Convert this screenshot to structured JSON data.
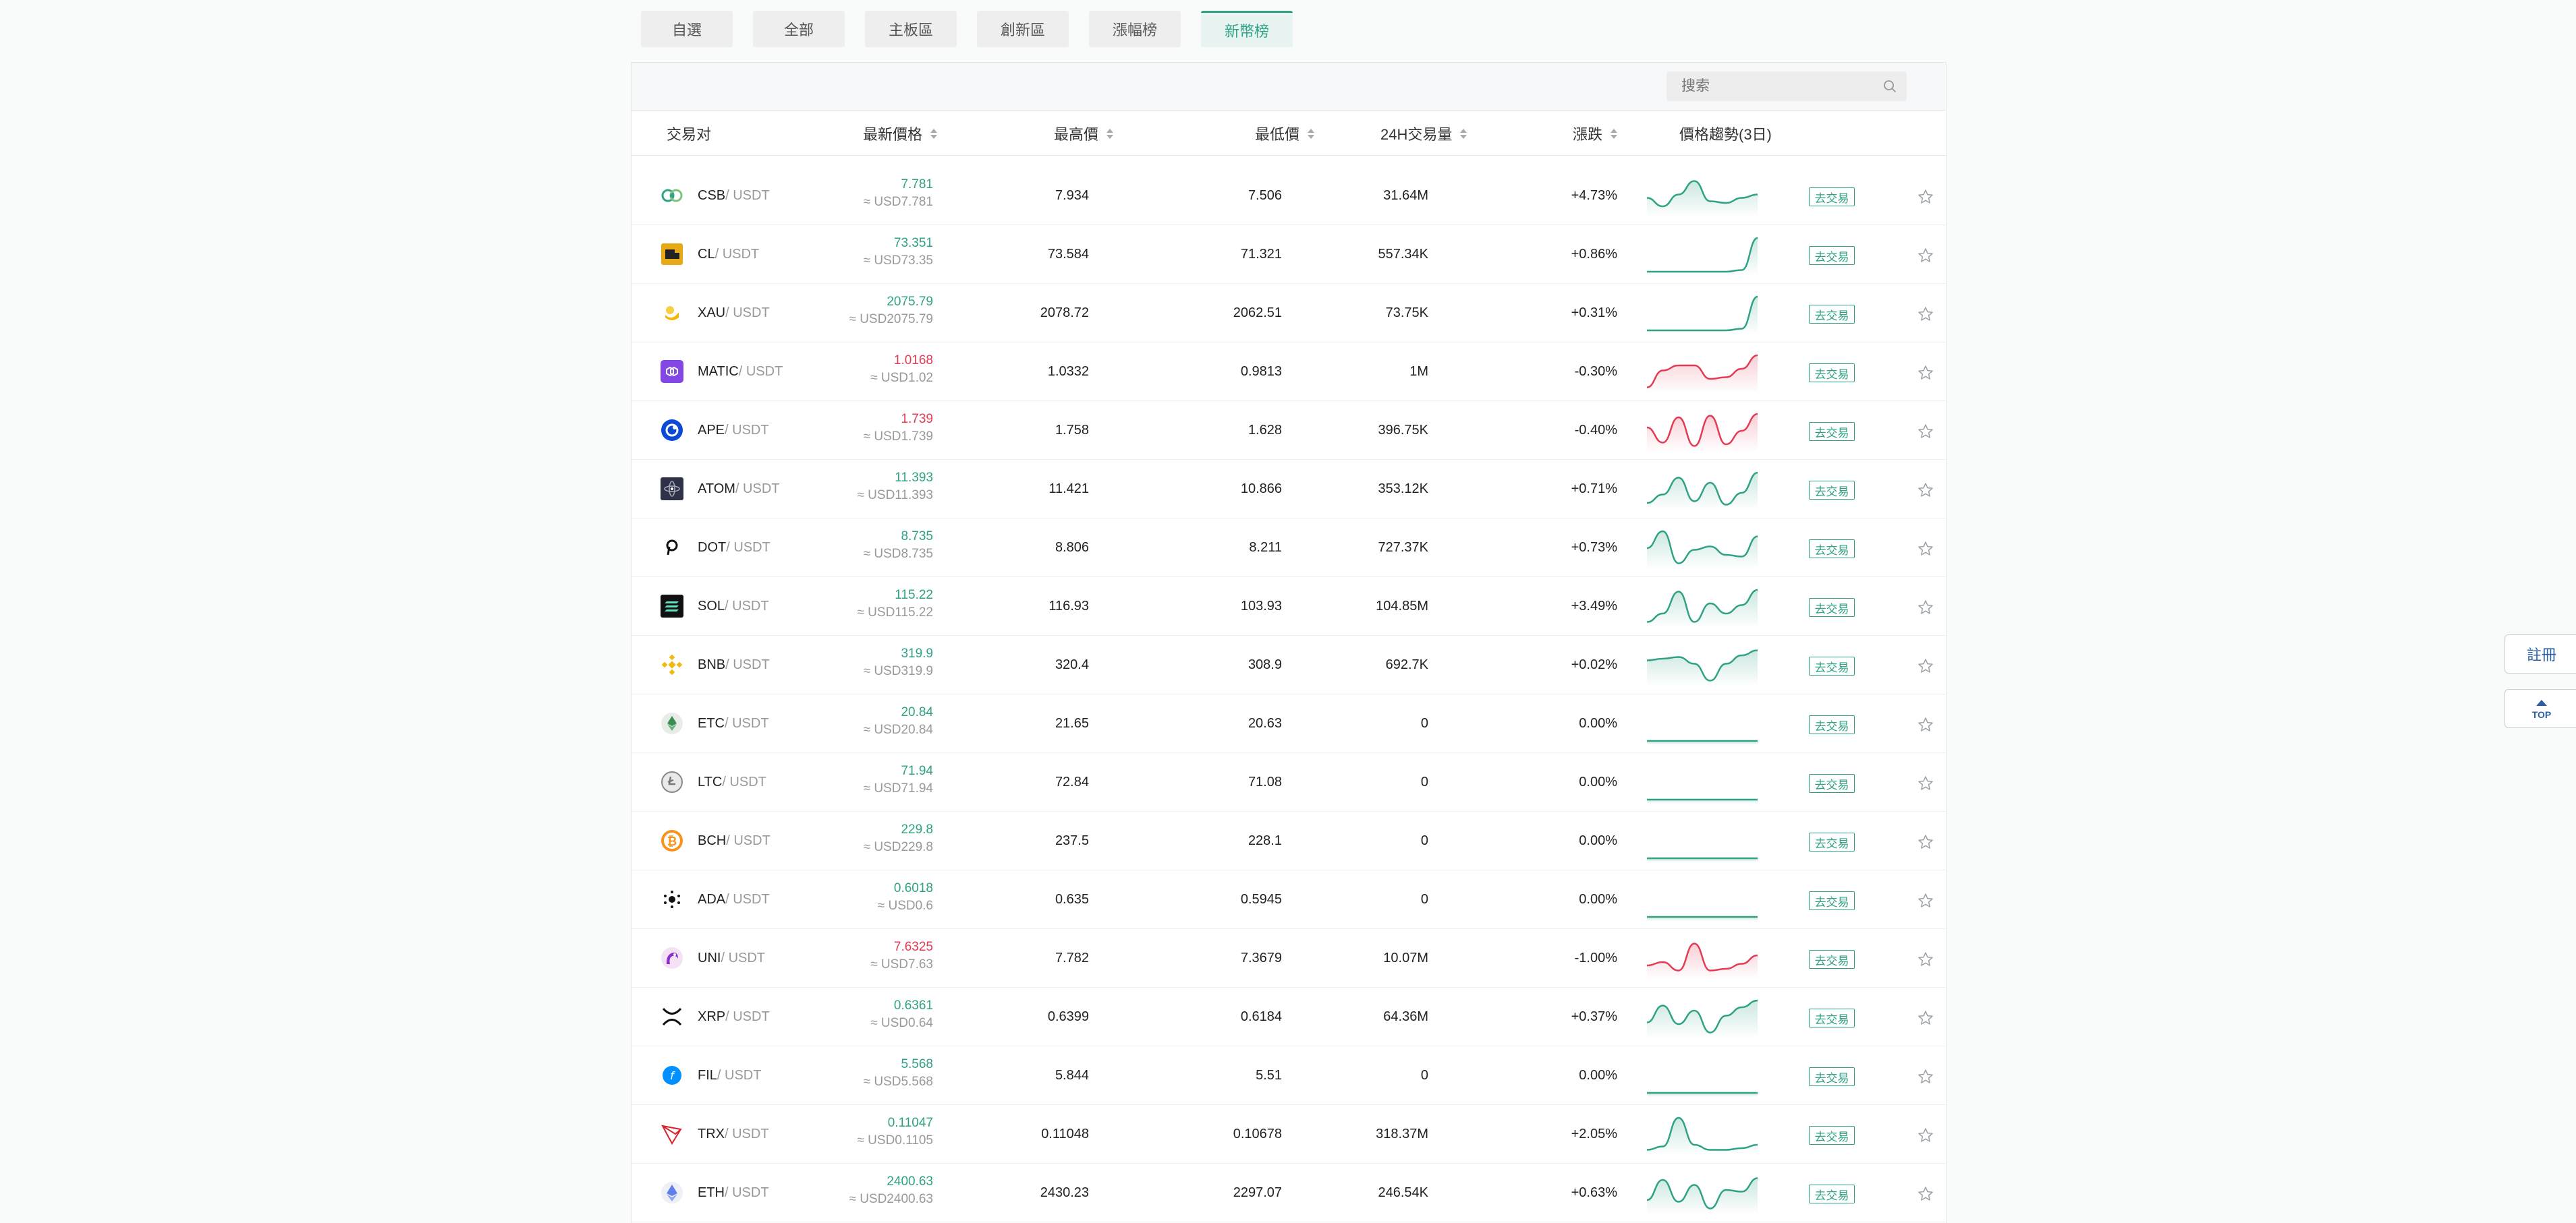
{
  "tabs": [
    {
      "label": "自選",
      "active": false
    },
    {
      "label": "全部",
      "active": false
    },
    {
      "label": "主板區",
      "active": false
    },
    {
      "label": "創新區",
      "active": false
    },
    {
      "label": "漲幅榜",
      "active": false
    },
    {
      "label": "新幣榜",
      "active": true
    }
  ],
  "search": {
    "placeholder": "搜索",
    "icon": "search-icon"
  },
  "table": {
    "headers": {
      "pair": "交易对",
      "last_price": "最新價格",
      "high": "最高價",
      "low": "最低價",
      "volume": "24H交易量",
      "change": "漲跌",
      "trend": "價格趨勢(3日)"
    },
    "trade_label": "去交易",
    "rows": [
      {
        "base": "CSB",
        "quote": "/ USDT",
        "icon": "csb-coin-icon",
        "price": "7.781",
        "usd": "≈ USD7.781",
        "high": "7.934",
        "low": "7.506",
        "volume": "31.64M",
        "change": "+4.73%",
        "dir": "up",
        "trend": [
          0.45,
          0.2,
          0.55,
          0.95,
          0.35,
          0.3,
          0.45,
          0.55
        ]
      },
      {
        "base": "CL",
        "quote": "/ USDT",
        "icon": "cl-coin-icon",
        "price": "73.351",
        "usd": "≈ USD73.35",
        "high": "73.584",
        "low": "71.321",
        "volume": "557.34K",
        "change": "+0.86%",
        "dir": "up",
        "trend": [
          0,
          0,
          0,
          0,
          0,
          0,
          0.05,
          1
        ]
      },
      {
        "base": "XAU",
        "quote": "/ USDT",
        "icon": "xau-coin-icon",
        "price": "2075.79",
        "usd": "≈ USD2075.79",
        "high": "2078.72",
        "low": "2062.51",
        "volume": "73.75K",
        "change": "+0.31%",
        "dir": "up",
        "trend": [
          0,
          0,
          0,
          0,
          0,
          0,
          0.05,
          1
        ]
      },
      {
        "base": "MATIC",
        "quote": "/ USDT",
        "icon": "matic-coin-icon",
        "price": "1.0168",
        "usd": "≈ USD1.02",
        "high": "1.0332",
        "low": "0.9813",
        "volume": "1M",
        "change": "-0.30%",
        "dir": "down",
        "trend": [
          0.05,
          0.55,
          0.7,
          0.7,
          0.3,
          0.35,
          0.6,
          1
        ]
      },
      {
        "base": "APE",
        "quote": "/ USDT",
        "icon": "ape-coin-icon",
        "price": "1.739",
        "usd": "≈ USD1.739",
        "high": "1.758",
        "low": "1.628",
        "volume": "396.75K",
        "change": "-0.40%",
        "dir": "down",
        "trend": [
          0.6,
          0.15,
          0.9,
          0.05,
          0.95,
          0.1,
          0.5,
          1
        ]
      },
      {
        "base": "ATOM",
        "quote": "/ USDT",
        "icon": "atom-coin-icon",
        "price": "11.393",
        "usd": "≈ USD11.393",
        "high": "11.421",
        "low": "10.866",
        "volume": "353.12K",
        "change": "+0.71%",
        "dir": "up",
        "trend": [
          0.1,
          0.35,
          0.85,
          0.15,
          0.7,
          0.05,
          0.4,
          1
        ]
      },
      {
        "base": "DOT",
        "quote": "/ USDT",
        "icon": "dot-coin-icon",
        "price": "8.735",
        "usd": "≈ USD8.735",
        "high": "8.806",
        "low": "8.211",
        "volume": "727.37K",
        "change": "+0.73%",
        "dir": "up",
        "trend": [
          0.5,
          1,
          0.05,
          0.45,
          0.55,
          0.3,
          0.25,
          0.85
        ]
      },
      {
        "base": "SOL",
        "quote": "/ USDT",
        "icon": "sol-coin-icon",
        "price": "115.22",
        "usd": "≈ USD115.22",
        "high": "116.93",
        "low": "103.93",
        "volume": "104.85M",
        "change": "+3.49%",
        "dir": "up",
        "trend": [
          0.05,
          0.3,
          0.95,
          0.05,
          0.6,
          0.3,
          0.55,
          1
        ]
      },
      {
        "base": "BNB",
        "quote": "/ USDT",
        "icon": "bnb-coin-icon",
        "price": "319.9",
        "usd": "≈ USD319.9",
        "high": "320.4",
        "low": "308.9",
        "volume": "692.7K",
        "change": "+0.02%",
        "dir": "up",
        "trend": [
          0.65,
          0.7,
          0.75,
          0.55,
          0.05,
          0.55,
          0.8,
          0.95
        ]
      },
      {
        "base": "ETC",
        "quote": "/ USDT",
        "icon": "etc-coin-icon",
        "price": "20.84",
        "usd": "≈ USD20.84",
        "high": "21.65",
        "low": "20.63",
        "volume": "0",
        "change": "0.00%",
        "dir": "flat",
        "trend": [
          0,
          0,
          0,
          0,
          0,
          0,
          0,
          0
        ]
      },
      {
        "base": "LTC",
        "quote": "/ USDT",
        "icon": "ltc-coin-icon",
        "price": "71.94",
        "usd": "≈ USD71.94",
        "high": "72.84",
        "low": "71.08",
        "volume": "0",
        "change": "0.00%",
        "dir": "flat",
        "trend": [
          0,
          0,
          0,
          0,
          0,
          0,
          0,
          0
        ]
      },
      {
        "base": "BCH",
        "quote": "/ USDT",
        "icon": "bch-coin-icon",
        "price": "229.8",
        "usd": "≈ USD229.8",
        "high": "237.5",
        "low": "228.1",
        "volume": "0",
        "change": "0.00%",
        "dir": "flat",
        "trend": [
          0,
          0,
          0,
          0,
          0,
          0,
          0,
          0
        ]
      },
      {
        "base": "ADA",
        "quote": "/ USDT",
        "icon": "ada-coin-icon",
        "price": "0.6018",
        "usd": "≈ USD0.6",
        "high": "0.635",
        "low": "0.5945",
        "volume": "0",
        "change": "0.00%",
        "dir": "flat",
        "trend": [
          0,
          0,
          0,
          0,
          0,
          0,
          0,
          0
        ]
      },
      {
        "base": "UNI",
        "quote": "/ USDT",
        "icon": "uni-coin-icon",
        "price": "7.6325",
        "usd": "≈ USD7.63",
        "high": "7.782",
        "low": "7.3679",
        "volume": "10.07M",
        "change": "-1.00%",
        "dir": "down",
        "trend": [
          0.3,
          0.4,
          0.15,
          0.95,
          0.15,
          0.2,
          0.35,
          0.6
        ]
      },
      {
        "base": "XRP",
        "quote": "/ USDT",
        "icon": "xrp-coin-icon",
        "price": "0.6361",
        "usd": "≈ USD0.64",
        "high": "0.6399",
        "low": "0.6184",
        "volume": "64.36M",
        "change": "+0.37%",
        "dir": "up",
        "trend": [
          0.35,
          0.85,
          0.3,
          0.7,
          0.05,
          0.55,
          0.8,
          1
        ]
      },
      {
        "base": "FIL",
        "quote": "/ USDT",
        "icon": "fil-coin-icon",
        "price": "5.568",
        "usd": "≈ USD5.568",
        "high": "5.844",
        "low": "5.51",
        "volume": "0",
        "change": "0.00%",
        "dir": "flat",
        "trend": [
          0,
          0,
          0,
          0,
          0,
          0,
          0,
          0
        ]
      },
      {
        "base": "TRX",
        "quote": "/ USDT",
        "icon": "trx-coin-icon",
        "price": "0.11047",
        "usd": "≈ USD0.1105",
        "high": "0.11048",
        "low": "0.10678",
        "volume": "318.37M",
        "change": "+2.05%",
        "dir": "up",
        "trend": [
          0.05,
          0.15,
          1,
          0.2,
          0.05,
          0.05,
          0.1,
          0.2
        ]
      },
      {
        "base": "ETH",
        "quote": "/ USDT",
        "icon": "eth-coin-icon",
        "price": "2400.63",
        "usd": "≈ USD2400.63",
        "high": "2430.23",
        "low": "2297.07",
        "volume": "246.54K",
        "change": "+0.63%",
        "dir": "up",
        "trend": [
          0.3,
          0.9,
          0.25,
          0.75,
          0.05,
          0.6,
          0.55,
          0.95
        ]
      }
    ]
  },
  "side": {
    "register": "註冊",
    "top": "TOP"
  },
  "colors": {
    "up": "#2fa185",
    "down": "#e33b54",
    "accent": "#2fa185"
  }
}
